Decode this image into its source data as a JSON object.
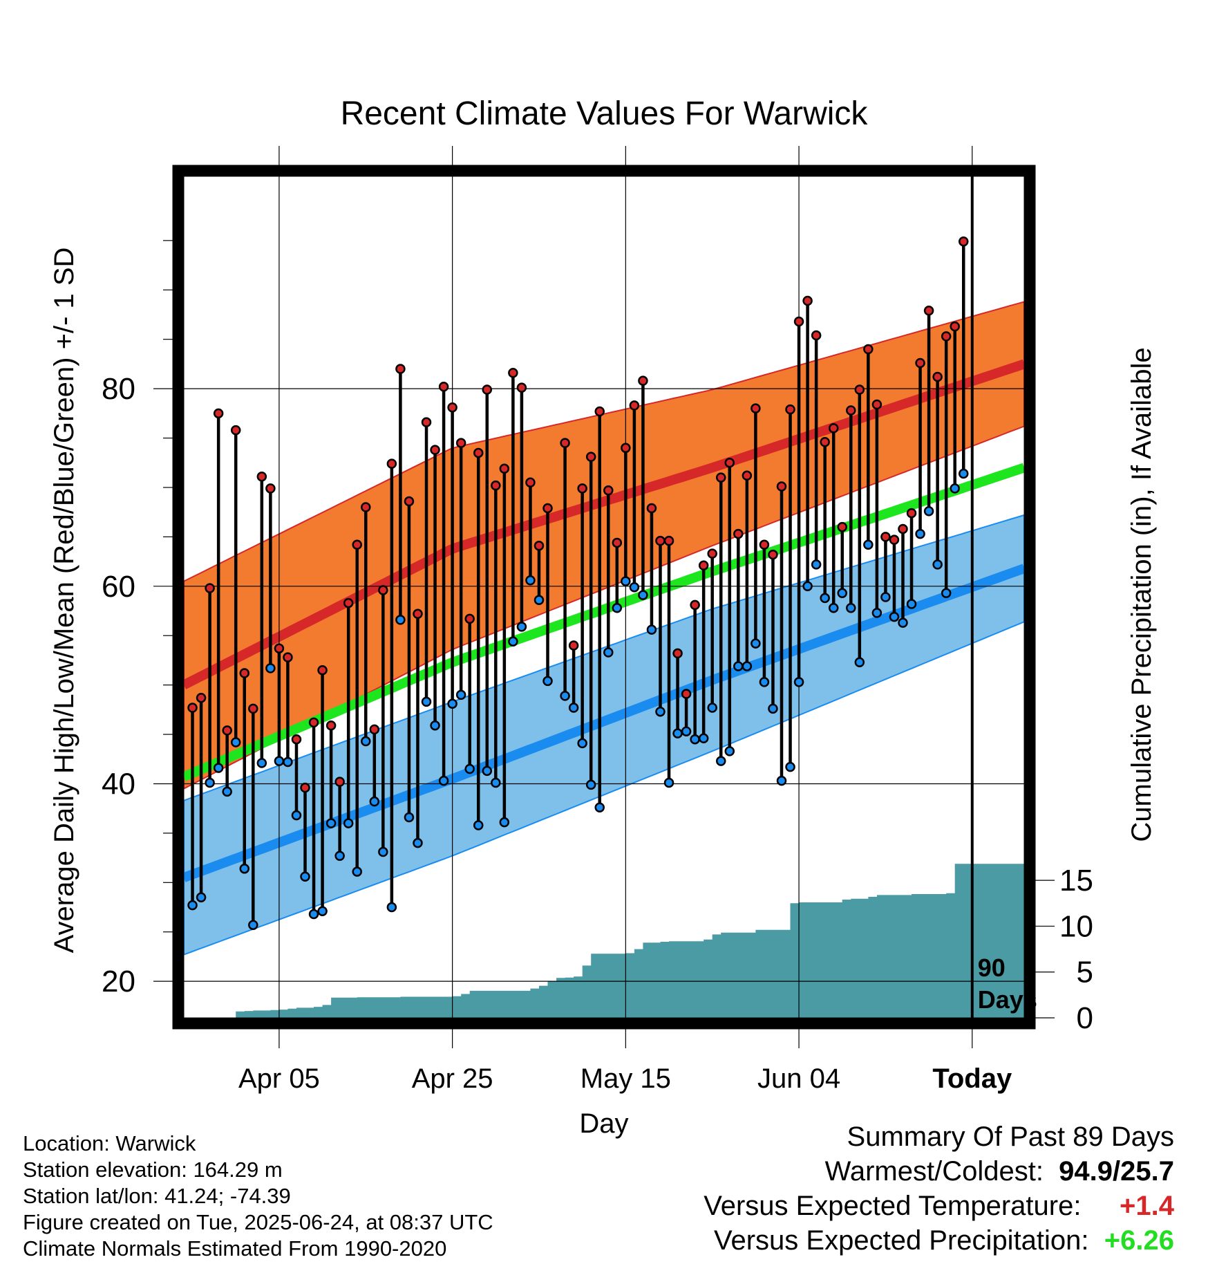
{
  "chart_data": {
    "type": "line",
    "title": "Recent Climate Values For Warwick",
    "xlabel": "Day",
    "ylabel": "Average Daily High/Low/Mean (Red/Blue/Green) +/- 1 SD",
    "y2label": "Cumulative Precipitation (in), If Available",
    "x_start": "2025-03-25",
    "x_end": "2025-06-30",
    "today": "2025-06-24",
    "x_tick_labels": [
      {
        "date": "2025-04-05",
        "label": "Apr 05"
      },
      {
        "date": "2025-04-25",
        "label": "Apr 25"
      },
      {
        "date": "2025-05-15",
        "label": "May 15"
      },
      {
        "date": "2025-06-04",
        "label": "Jun 04"
      },
      {
        "date": "2025-06-24",
        "label": "Today"
      }
    ],
    "ylim": [
      16.3,
      101.5
    ],
    "y_ticks": [
      20,
      40,
      60,
      80
    ],
    "y2lim": [
      0,
      91.8
    ],
    "y2_ticks": [
      0,
      5,
      10,
      15
    ],
    "today_marker_label": [
      "90",
      "Days"
    ],
    "grid": true,
    "colors": {
      "high": "#d62828",
      "high_band": "#f27b30",
      "low": "#1a8cf0",
      "low_band": "#7fc0ea",
      "mean": "#1ee61e",
      "precip": "#4a9ba4",
      "positive_temp": "#d62828",
      "positive_precip": "#22dd22"
    },
    "normals": {
      "dates": [
        "2025-03-25",
        "2025-04-25",
        "2025-05-25",
        "2025-06-30"
      ],
      "high": [
        50.0,
        63.8,
        72.0,
        82.5
      ],
      "high_sd": [
        10.5,
        10.2,
        7.9,
        6.3
      ],
      "low": [
        30.5,
        40.5,
        50.5,
        61.8
      ],
      "low_sd": [
        7.8,
        7.8,
        7.2,
        5.4
      ],
      "mean": [
        40.7,
        52.3,
        61.5,
        72.0
      ]
    },
    "observed": {
      "start_date": "2025-03-26",
      "high": [
        47.7,
        48.7,
        59.8,
        77.5,
        45.4,
        75.8,
        51.2,
        47.6,
        71.1,
        69.9,
        53.7,
        52.8,
        44.5,
        39.6,
        46.2,
        51.5,
        45.9,
        40.2,
        58.3,
        64.2,
        68.0,
        45.5,
        59.6,
        72.4,
        82.0,
        68.6,
        57.2,
        76.6,
        73.8,
        80.2,
        78.1,
        74.5,
        56.7,
        73.5,
        79.9,
        70.2,
        71.9,
        81.6,
        80.1,
        70.5,
        64.1,
        67.9,
        null,
        74.5,
        54.0,
        69.9,
        73.1,
        77.7,
        69.7,
        64.4,
        74.0,
        78.3,
        80.8,
        67.9,
        64.6,
        64.6,
        53.2,
        49.1,
        58.1,
        62.1,
        63.3,
        71.0,
        72.5,
        65.3,
        71.2,
        78.0,
        64.2,
        63.2,
        70.1,
        77.9,
        86.8,
        88.9,
        85.4,
        74.6,
        76.0,
        66.0,
        77.8,
        79.9,
        84.0,
        78.4,
        65.0,
        64.7,
        65.8,
        67.4,
        82.6,
        87.9,
        81.2,
        85.3,
        86.3,
        94.9
      ],
      "low": [
        27.7,
        28.5,
        40.1,
        41.6,
        39.2,
        44.2,
        31.4,
        25.7,
        42.1,
        51.7,
        42.3,
        42.2,
        36.8,
        30.6,
        26.8,
        27.1,
        36.0,
        32.7,
        36.0,
        31.1,
        44.3,
        38.2,
        33.1,
        27.5,
        56.6,
        36.6,
        34.0,
        48.3,
        45.9,
        40.3,
        48.1,
        49.0,
        41.5,
        35.8,
        41.3,
        40.1,
        36.1,
        54.4,
        55.9,
        60.6,
        58.6,
        50.4,
        null,
        48.9,
        47.7,
        44.1,
        39.9,
        37.6,
        53.3,
        57.8,
        60.5,
        59.9,
        59.1,
        55.6,
        47.3,
        40.1,
        45.1,
        45.3,
        44.5,
        44.6,
        47.7,
        42.3,
        43.3,
        51.9,
        51.9,
        54.2,
        50.3,
        47.6,
        40.3,
        41.7,
        50.3,
        60.0,
        62.2,
        58.8,
        57.8,
        59.3,
        57.8,
        52.3,
        64.2,
        57.3,
        58.9,
        56.9,
        56.3,
        58.2,
        65.3,
        67.6,
        62.2,
        59.3,
        69.9,
        71.4
      ]
    },
    "precip_cumulative": {
      "start_date": "2025-03-25",
      "values": [
        0,
        0,
        0,
        0,
        0,
        0,
        0.7,
        0.75,
        0.8,
        0.8,
        0.85,
        0.9,
        1.0,
        1.1,
        1.1,
        1.2,
        1.4,
        2.2,
        2.2,
        2.2,
        2.25,
        2.25,
        2.25,
        2.25,
        2.25,
        2.3,
        2.3,
        2.3,
        2.3,
        2.3,
        2.3,
        2.35,
        2.6,
        2.95,
        2.95,
        2.95,
        2.95,
        2.95,
        2.95,
        2.95,
        3.2,
        3.5,
        4.0,
        4.35,
        4.4,
        4.5,
        5.7,
        7.0,
        7.0,
        7.0,
        7.0,
        7.05,
        7.5,
        8.2,
        8.2,
        8.3,
        8.35,
        8.35,
        8.35,
        8.35,
        8.55,
        9.1,
        9.3,
        9.3,
        9.3,
        9.3,
        9.6,
        9.6,
        9.6,
        9.6,
        12.5,
        12.6,
        12.6,
        12.6,
        12.6,
        12.6,
        12.9,
        13.0,
        13.0,
        13.2,
        13.4,
        13.4,
        13.4,
        13.4,
        13.5,
        13.5,
        13.5,
        13.5,
        13.6,
        16.8,
        16.8,
        16.8,
        16.8,
        16.8,
        16.8,
        16.8,
        16.8,
        16.8
      ]
    }
  },
  "footer": {
    "location": "Location: Warwick",
    "elevation": "Station elevation: 164.29 m",
    "latlon": "Station lat/lon: 41.24; -74.39",
    "created": "Figure created on Tue, 2025-06-24, at 08:37 UTC",
    "normals": "Climate Normals Estimated From 1990-2020"
  },
  "summary": {
    "title": "Summary Of Past 89 Days",
    "warm_cold_label": "Warmest/Coldest:",
    "warm_cold_value": "94.9/25.7",
    "temp_label": "Versus Expected Temperature:",
    "temp_value": "+1.4",
    "precip_label": "Versus Expected Precipitation:",
    "precip_value": "+6.26"
  }
}
